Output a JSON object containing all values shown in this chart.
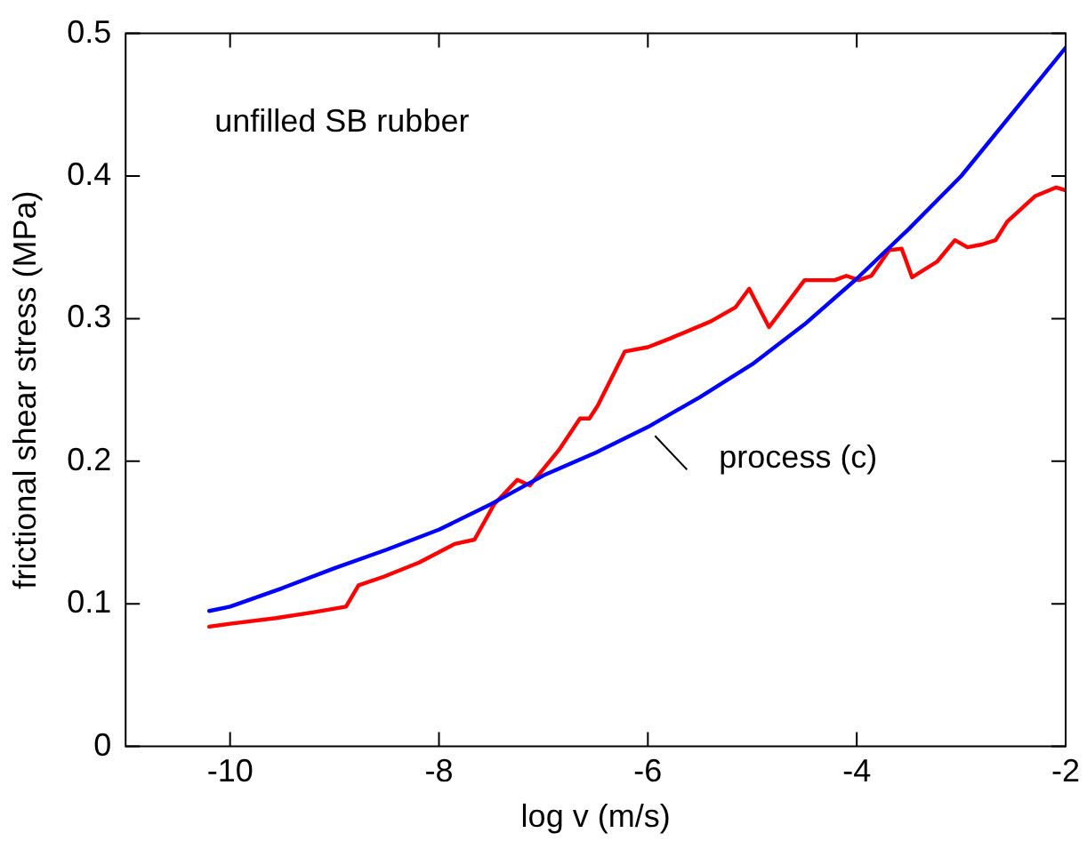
{
  "chart_data": {
    "type": "line",
    "xlabel": "log v (m/s)",
    "ylabel": "frictional shear stress (MPa)",
    "xlim": [
      -11,
      -2
    ],
    "xticks": [
      -10,
      -8,
      -6,
      -4,
      -2
    ],
    "ylim": [
      0,
      0.5
    ],
    "yticks": [
      0,
      0.1,
      0.2,
      0.3,
      0.4,
      0.5
    ],
    "grid": false,
    "legend": false,
    "marker": "none",
    "line_style": "solid",
    "annotations": [
      "unfilled SB rubber"
    ],
    "series": [
      {
        "name": "process (c)",
        "color": "#0000ff",
        "x": [
          -10.2,
          -10,
          -9.5,
          -9,
          -8.5,
          -8,
          -7.5,
          -7,
          -6.5,
          -6,
          -5.5,
          -5,
          -4.5,
          -4,
          -3.5,
          -3,
          -2.5,
          -2
        ],
        "values": [
          0.095,
          0.098,
          0.111,
          0.125,
          0.138,
          0.152,
          0.17,
          0.19,
          0.206,
          0.224,
          0.245,
          0.268,
          0.296,
          0.328,
          0.363,
          0.4,
          0.445,
          0.49
        ]
      },
      {
        "color": "#ff0000",
        "x": [
          -10.2,
          -10,
          -9.56,
          -9.21,
          -8.89,
          -8.77,
          -8.53,
          -8.19,
          -7.85,
          -7.66,
          -7.47,
          -7.25,
          -7.13,
          -6.85,
          -6.65,
          -6.56,
          -6.48,
          -6.22,
          -6,
          -5.79,
          -5.4,
          -5.16,
          -5.03,
          -4.84,
          -4.5,
          -4.21,
          -4.1,
          -3.98,
          -3.86,
          -3.69,
          -3.57,
          -3.47,
          -3.23,
          -3.06,
          -2.94,
          -2.8,
          -2.67,
          -2.56,
          -2.29,
          -2.09,
          -2
        ],
        "values": [
          0.084,
          0.086,
          0.09,
          0.094,
          0.098,
          0.113,
          0.119,
          0.129,
          0.142,
          0.145,
          0.17,
          0.187,
          0.183,
          0.208,
          0.23,
          0.23,
          0.239,
          0.277,
          0.28,
          0.286,
          0.298,
          0.308,
          0.321,
          0.294,
          0.327,
          0.327,
          0.33,
          0.327,
          0.33,
          0.348,
          0.349,
          0.329,
          0.34,
          0.355,
          0.35,
          0.352,
          0.355,
          0.368,
          0.386,
          0.392,
          0.39
        ]
      }
    ]
  }
}
